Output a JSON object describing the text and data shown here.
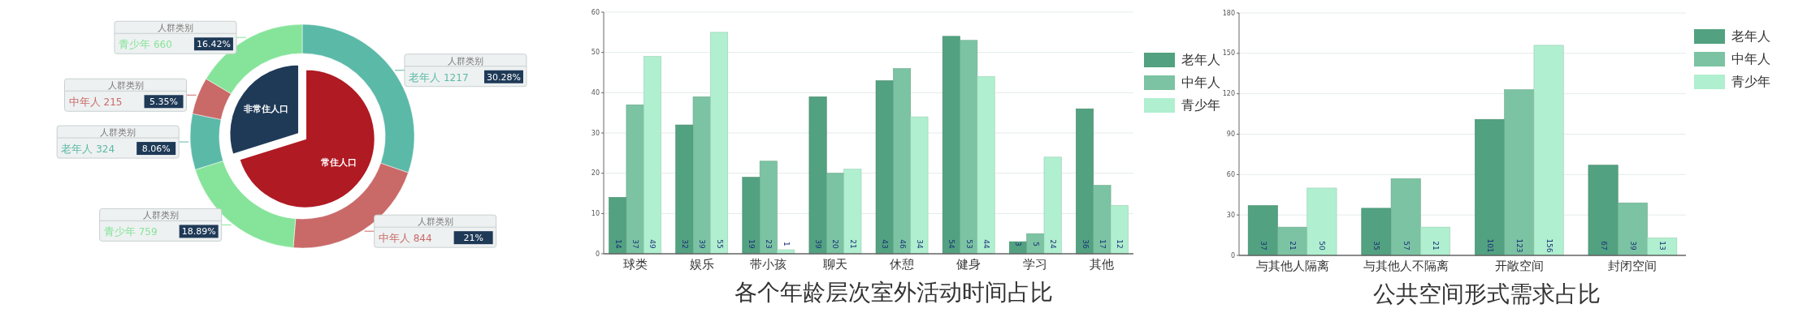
{
  "chart_data": [
    {
      "type": "donut",
      "legend_title": "人群类别",
      "categories": [
        "老年人",
        "中年人",
        "青少年",
        "老年人",
        "中年人",
        "青少年"
      ],
      "values": [
        1217,
        844,
        759,
        324,
        215,
        660
      ],
      "colors": [
        "#5bb9a8",
        "#c96a68",
        "#86e49a",
        "#5bb9a8",
        "#c96a68",
        "#86e49a"
      ],
      "annotations": [
        "30.28%",
        "21%",
        "18.89%",
        "8.06%",
        "5.35%",
        "16.42%"
      ],
      "data_labels": true
    },
    {
      "type": "pie",
      "categories": [
        "常住人口",
        "非常住人口"
      ],
      "values": [
        70.17,
        29.83
      ],
      "colors": [
        "#b01a23",
        "#1f3a57"
      ]
    },
    {
      "type": "bar",
      "title": "各个年龄层次室外活动时间占比",
      "categories": [
        "球类",
        "娱乐",
        "带小孩",
        "聊天",
        "休憩",
        "健身",
        "学习",
        "其他"
      ],
      "series": [
        {
          "name": "老年人",
          "color": "#52a180",
          "values": [
            14,
            32,
            19,
            39,
            43,
            54,
            3,
            36
          ]
        },
        {
          "name": "中年人",
          "color": "#7bc3a2",
          "values": [
            37,
            39,
            23,
            20,
            46,
            53,
            5,
            17
          ]
        },
        {
          "name": "青少年",
          "color": "#b0efcf",
          "values": [
            49,
            55,
            1,
            21,
            34,
            44,
            24,
            12
          ]
        }
      ],
      "ylim": [
        0,
        60
      ],
      "yticks": [
        0,
        10,
        20,
        30,
        40,
        50,
        60
      ],
      "grid": "y",
      "legend": "right",
      "data_labels": true
    },
    {
      "type": "bar",
      "title": "公共空间形式需求占比",
      "categories": [
        "与其他人隔离",
        "与其他人不隔离",
        "开敞空间",
        "封闭空间"
      ],
      "series": [
        {
          "name": "老年人",
          "color": "#52a180",
          "values": [
            37,
            35,
            101,
            67
          ]
        },
        {
          "name": "中年人",
          "color": "#7bc3a2",
          "values": [
            21,
            57,
            123,
            39
          ]
        },
        {
          "name": "青少年",
          "color": "#b0efcf",
          "values": [
            50,
            21,
            156,
            13
          ]
        }
      ],
      "ylim": [
        0,
        180
      ],
      "yticks": [
        0,
        30,
        60,
        90,
        120,
        150,
        180
      ],
      "grid": "y",
      "legend": "top right",
      "data_labels": true
    }
  ]
}
